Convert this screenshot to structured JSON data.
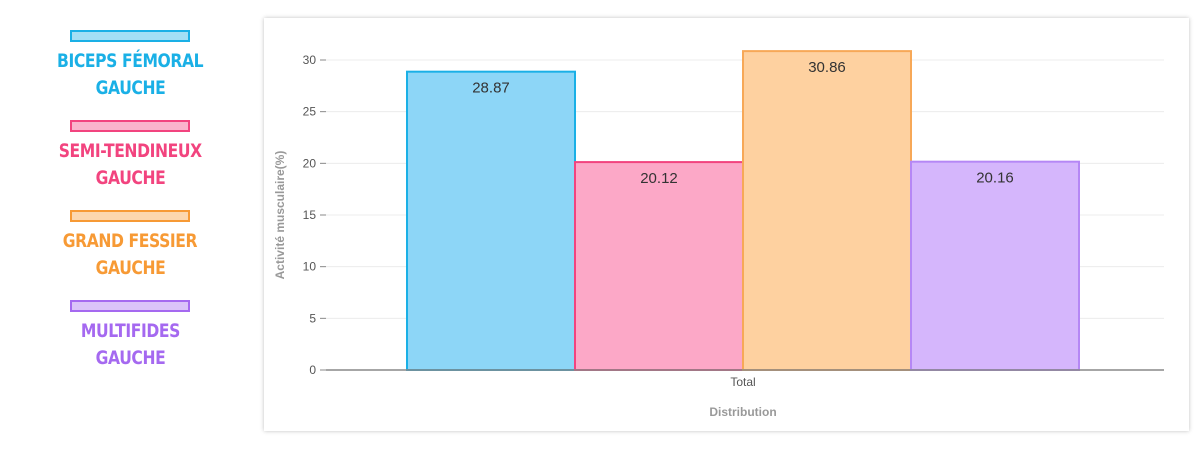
{
  "legend": [
    {
      "line1": "BICEPS FÉMORAL",
      "line2": "GAUCHE",
      "color": "#1ab0e6"
    },
    {
      "line1": "SEMI-TENDINEUX",
      "line2": "GAUCHE",
      "color": "#f2447f"
    },
    {
      "line1": "GRAND FESSIER",
      "line2": "GAUCHE",
      "color": "#f79a35"
    },
    {
      "line1": "MULTIFIDES",
      "line2": "GAUCHE",
      "color": "#a569f0"
    }
  ],
  "chart_data": {
    "type": "bar",
    "categories": [
      "Total"
    ],
    "series": [
      {
        "values": [
          28.87
        ],
        "label": "28.87",
        "fill": "#8dd6f7",
        "stroke": "#1ab0e6"
      },
      {
        "values": [
          20.12
        ],
        "label": "20.12",
        "fill": "#fca8c7",
        "stroke": "#f2447f"
      },
      {
        "values": [
          30.86
        ],
        "label": "30.86",
        "fill": "#fed1a0",
        "stroke": "#f7a857"
      },
      {
        "values": [
          20.16
        ],
        "label": "20.16",
        "fill": "#d5b6fc",
        "stroke": "#b587f5"
      }
    ],
    "xlabel": "Distribution",
    "ylabel": "Activité musculaire(%)",
    "ylim": [
      0,
      30
    ],
    "yticks": [
      0,
      5,
      10,
      15,
      20,
      25,
      30
    ],
    "grid": true
  }
}
